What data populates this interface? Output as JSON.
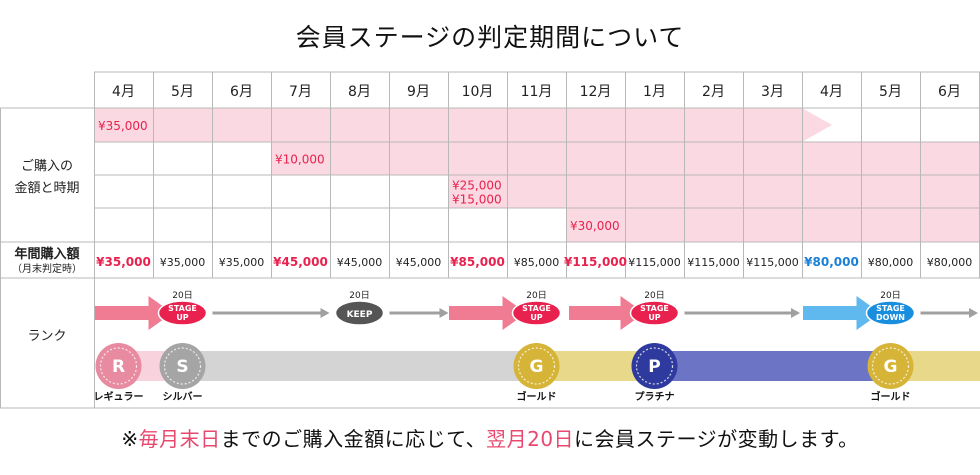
{
  "title": "会員ステージの判定期間について",
  "months": [
    "4月",
    "5月",
    "6月",
    "7月",
    "8月",
    "9月",
    "10月",
    "11月",
    "12月",
    "1月",
    "2月",
    "3月",
    "4月",
    "5月",
    "6月"
  ],
  "row_label_purchases": "ご購入の\n金額と時期",
  "purchases": [
    {
      "labels": [
        "¥35,000"
      ],
      "start": 0,
      "end": 12,
      "arrow": true
    },
    {
      "labels": [
        "¥10,000"
      ],
      "start": 3,
      "end": 15,
      "arrow": true
    },
    {
      "labels": [
        "¥25,000",
        "¥15,000"
      ],
      "start": 6,
      "end": 15,
      "arrow": false
    },
    {
      "labels": [
        "¥30,000"
      ],
      "start": 8,
      "end": 15,
      "arrow": false
    }
  ],
  "annual_label": "年間購入額",
  "annual_sublabel": "（月末判定時）",
  "annual": [
    {
      "text": "¥35,000",
      "style": "red"
    },
    {
      "text": "¥35,000",
      "style": "normal"
    },
    {
      "text": "¥35,000",
      "style": "normal"
    },
    {
      "text": "¥45,000",
      "style": "red"
    },
    {
      "text": "¥45,000",
      "style": "normal"
    },
    {
      "text": "¥45,000",
      "style": "normal"
    },
    {
      "text": "¥85,000",
      "style": "red"
    },
    {
      "text": "¥85,000",
      "style": "normal"
    },
    {
      "text": "¥115,000",
      "style": "red"
    },
    {
      "text": "¥115,000",
      "style": "normal"
    },
    {
      "text": "¥115,000",
      "style": "normal"
    },
    {
      "text": "¥115,000",
      "style": "normal"
    },
    {
      "text": "¥80,000",
      "style": "blue"
    },
    {
      "text": "¥80,000",
      "style": "normal"
    },
    {
      "text": "¥80,000",
      "style": "normal"
    }
  ],
  "rank_label": "ランク",
  "day_label": "20日",
  "events": [
    {
      "col": 1,
      "label": [
        "STAGE",
        "UP"
      ],
      "type": "up"
    },
    {
      "col": 4,
      "label": [
        "KEEP"
      ],
      "type": "keep"
    },
    {
      "col": 7,
      "label": [
        "STAGE",
        "UP"
      ],
      "type": "up"
    },
    {
      "col": 9,
      "label": [
        "STAGE",
        "UP"
      ],
      "type": "up"
    },
    {
      "col": 13,
      "label": [
        "STAGE",
        "DOWN"
      ],
      "type": "down"
    }
  ],
  "ranks": [
    {
      "letter": "R",
      "name": "レギュラー",
      "col": 0,
      "color": "#e88aa0",
      "bar": "#f8d3dd"
    },
    {
      "letter": "S",
      "name": "シルバー",
      "col": 1,
      "color": "#a5a5a5",
      "bar": "#d4d4d4"
    },
    {
      "letter": "G",
      "name": "ゴールド",
      "col": 7,
      "color": "#d6b437",
      "bar": "#e8d88a"
    },
    {
      "letter": "P",
      "name": "プラチナ",
      "col": 9,
      "color": "#2f3a9e",
      "bar": "#6c74c6"
    },
    {
      "letter": "G",
      "name": "ゴールド",
      "col": 13,
      "color": "#d6b437",
      "bar": "#e8d88a"
    }
  ],
  "footnote": {
    "prefix": "※",
    "hl1": "毎月末日",
    "mid": "までのご購入金額に応じて、",
    "hl2": "翌月20日",
    "suffix": "に会員ステージが変動します。"
  },
  "colors": {
    "pink": "#f07c93",
    "pinkFill": "#fbd9e2",
    "blue": "#5fb8ee",
    "gray": "#a0a0a0",
    "red": "#e8214e",
    "blueText": "#1a7fd6",
    "grid": "#b8b8b8"
  }
}
